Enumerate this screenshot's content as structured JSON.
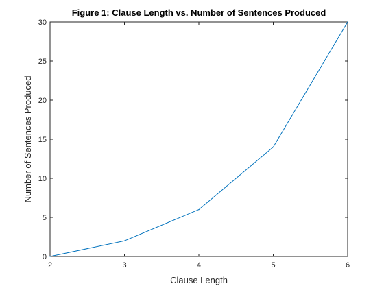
{
  "chart_data": {
    "type": "line",
    "title": "Figure 1: Clause Length vs. Number of Sentences Produced",
    "xlabel": "Clause Length",
    "ylabel": "Number of Sentences Produced",
    "x": [
      2,
      3,
      4,
      5,
      6
    ],
    "series": [
      {
        "values": [
          0,
          2,
          6,
          14,
          30
        ],
        "color": "#0072BD"
      }
    ],
    "xlim": [
      2,
      6
    ],
    "ylim": [
      0,
      30
    ],
    "xticks": [
      2,
      3,
      4,
      5,
      6
    ],
    "yticks": [
      0,
      5,
      10,
      15,
      20,
      25,
      30
    ],
    "grid": false,
    "box": true
  }
}
